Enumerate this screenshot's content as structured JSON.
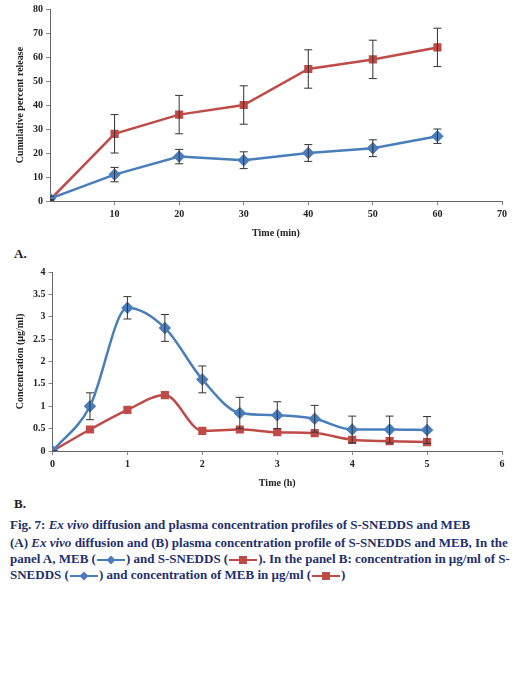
{
  "chart_data": [
    {
      "type": "line",
      "x_label": "Time (min)",
      "y_label": "Cumulative percent release",
      "xlim": [
        0,
        70
      ],
      "xticks": [
        10,
        20,
        30,
        40,
        50,
        60,
        70
      ],
      "ylim": [
        0,
        80
      ],
      "yticks": [
        0,
        10,
        20,
        30,
        40,
        50,
        60,
        70,
        80
      ],
      "grid": false,
      "x": [
        0,
        10,
        20,
        30,
        40,
        50,
        60
      ],
      "series": [
        {
          "name": "MEB",
          "color": "#4a7ebb",
          "marker": "diamond",
          "line_style": "straight",
          "values": [
            1,
            11,
            18.5,
            17,
            20,
            22,
            27
          ],
          "errors": [
            1,
            3,
            3,
            3.5,
            3.5,
            3.5,
            3
          ]
        },
        {
          "name": "S-SNEDDS",
          "color": "#be4b48",
          "marker": "square",
          "line_style": "straight",
          "values": [
            0.5,
            28,
            36,
            40,
            55,
            59,
            64
          ],
          "errors": [
            0,
            8,
            8,
            8,
            8,
            8,
            8
          ]
        }
      ]
    },
    {
      "type": "line",
      "x_label": "Time (h)",
      "y_label": "Concentration (µg/ml)",
      "xlim": [
        0,
        6
      ],
      "xticks": [
        0,
        1,
        2,
        3,
        4,
        5,
        6
      ],
      "ylim": [
        0,
        4
      ],
      "yticks": [
        0,
        0.5,
        1,
        1.5,
        2,
        2.5,
        3,
        3.5,
        4
      ],
      "grid": false,
      "x": [
        0,
        0.5,
        1,
        1.5,
        2,
        2.5,
        3,
        3.5,
        4,
        4.5,
        5
      ],
      "series": [
        {
          "name": "S-SNEDDS",
          "color": "#4a7ebb",
          "marker": "diamond",
          "line_style": "smooth",
          "values": [
            0,
            1.0,
            3.2,
            2.75,
            1.6,
            0.85,
            0.8,
            0.72,
            0.48,
            0.48,
            0.47
          ],
          "errors": [
            0,
            0.3,
            0.25,
            0.3,
            0.3,
            0.35,
            0.3,
            0.3,
            0.3,
            0.3,
            0.3
          ]
        },
        {
          "name": "MEB",
          "color": "#be4b48",
          "marker": "square",
          "line_style": "smooth",
          "values": [
            0,
            0.48,
            0.92,
            1.25,
            0.45,
            0.48,
            0.42,
            0.4,
            0.25,
            0.22,
            0.2
          ]
        }
      ]
    }
  ],
  "panels": [
    "A.",
    "B."
  ],
  "caption": {
    "title": [
      {
        "text": "Fig. 7: "
      },
      {
        "text": "Ex vivo",
        "italic": true
      },
      {
        "text": " diffusion and plasma concentration profiles of S-SNEDDS and MEB"
      }
    ],
    "text": [
      {
        "text": "(A) "
      },
      {
        "text": "Ex vivo",
        "italic": true
      },
      {
        "text": " diffusion and (B) plasma concentration profile of S-SNEDDS and MEB, In the panel A, MEB ("
      },
      {
        "symbol": {
          "color": "#4a7ebb",
          "marker": "diamond"
        }
      },
      {
        "text": ") and S-SNEDDS ("
      },
      {
        "symbol": {
          "color": "#be4b48",
          "marker": "square"
        }
      },
      {
        "text": "). In the panel B: concentration in µg/ml of S-SNEDDS ("
      },
      {
        "symbol": {
          "color": "#4a7ebb",
          "marker": "diamond"
        }
      },
      {
        "text": ") and concentration of MEB in µg/ml ("
      },
      {
        "symbol": {
          "color": "#be4b48",
          "marker": "square"
        }
      },
      {
        "text": ")"
      }
    ]
  }
}
